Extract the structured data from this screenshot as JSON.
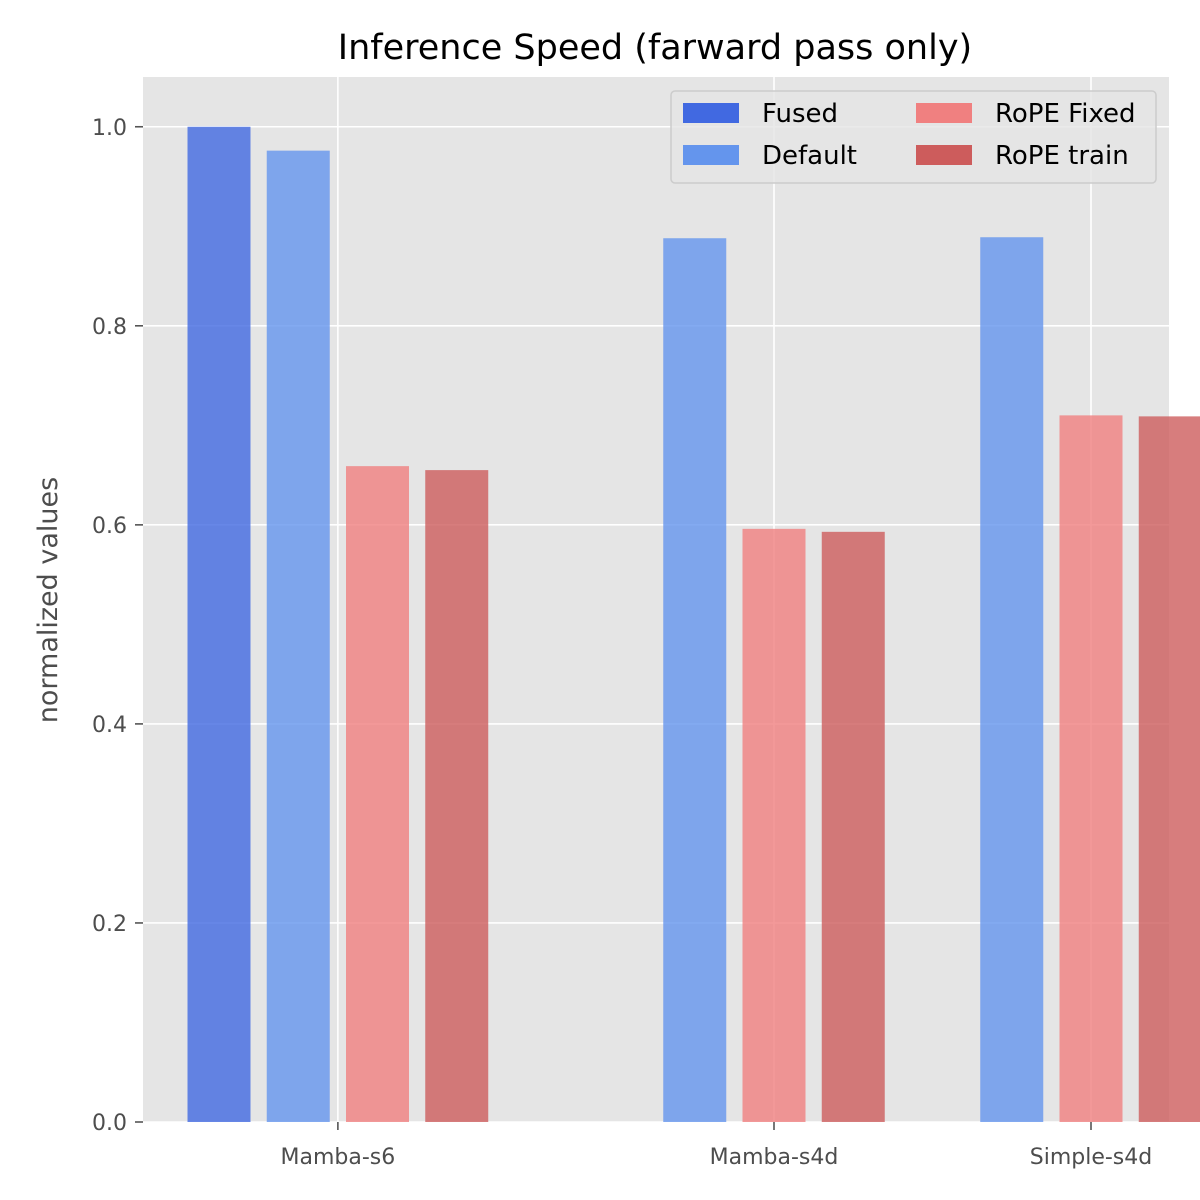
{
  "chart_data": {
    "type": "bar",
    "title": "Inference Speed (farward pass only)",
    "xlabel": "",
    "ylabel": "normalized values",
    "ylim": [
      0,
      1.05
    ],
    "yticks": [
      "0.0",
      "0.2",
      "0.4",
      "0.6",
      "0.8",
      "1.0"
    ],
    "ytick_values": [
      0.0,
      0.2,
      0.4,
      0.6,
      0.8,
      1.0
    ],
    "categories": [
      "Mamba-s6",
      "Mamba-s4d",
      "Simple-s4d"
    ],
    "grid": true,
    "legend_position": "top-right",
    "legend_columns": 2,
    "series": [
      {
        "name": "Fused",
        "color": "#4169e1",
        "values": [
          1.0,
          null,
          null
        ]
      },
      {
        "name": "Default",
        "color": "#6495ed",
        "values": [
          0.976,
          0.888,
          0.889
        ]
      },
      {
        "name": "RoPE Fixed",
        "color": "#f08080",
        "values": [
          0.659,
          0.596,
          0.71
        ]
      },
      {
        "name": "RoPE train",
        "color": "#cd5c5c",
        "values": [
          0.655,
          0.593,
          0.709
        ]
      }
    ],
    "colors": {
      "plot_background": "#e5e5e5",
      "grid": "#ffffff",
      "tick_text": "#4d4d4d"
    }
  }
}
